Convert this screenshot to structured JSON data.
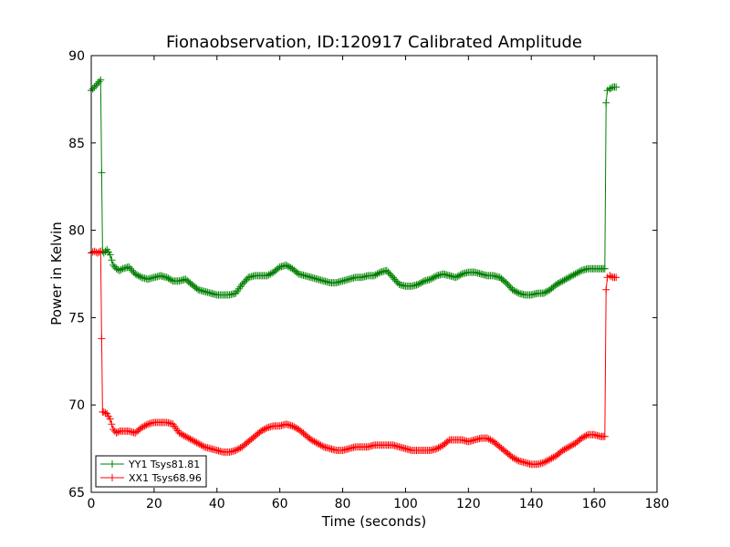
{
  "chart_data": {
    "type": "line",
    "title": "Fionaobservation, ID:120917 Calibrated Amplitude",
    "xlabel": "Time (seconds)",
    "ylabel": "Power in Kelvin",
    "xlim": [
      0,
      180
    ],
    "ylim": [
      65,
      90
    ],
    "xticks": [
      0,
      20,
      40,
      60,
      80,
      100,
      120,
      140,
      160,
      180
    ],
    "yticks": [
      65,
      70,
      75,
      80,
      85,
      90
    ],
    "grid": false,
    "legend_position": "lower-left",
    "marker": "plus",
    "series": [
      {
        "name": "YY1 Tsys81.81",
        "color": "#008000",
        "x": [
          0,
          1,
          2,
          3,
          3.3,
          3.6,
          4,
          5,
          6,
          7,
          8,
          9,
          10,
          12,
          14,
          16,
          18,
          20,
          22,
          24,
          26,
          28,
          30,
          32,
          34,
          36,
          38,
          40,
          42,
          44,
          46,
          48,
          50,
          52,
          54,
          56,
          58,
          60,
          62,
          64,
          66,
          68,
          70,
          72,
          74,
          76,
          78,
          80,
          82,
          84,
          86,
          88,
          90,
          92,
          94,
          96,
          98,
          100,
          102,
          104,
          106,
          108,
          110,
          112,
          114,
          116,
          118,
          120,
          122,
          124,
          126,
          128,
          130,
          132,
          134,
          136,
          138,
          140,
          142,
          144,
          146,
          148,
          150,
          152,
          154,
          156,
          158,
          160,
          162,
          163.4,
          163.8,
          164.2,
          165,
          166,
          167
        ],
        "y": [
          88.0,
          88.2,
          88.4,
          88.6,
          83.3,
          78.8,
          78.7,
          78.9,
          78.6,
          78.0,
          77.8,
          77.7,
          77.8,
          77.9,
          77.5,
          77.3,
          77.2,
          77.3,
          77.4,
          77.3,
          77.1,
          77.1,
          77.2,
          76.9,
          76.6,
          76.5,
          76.4,
          76.3,
          76.3,
          76.3,
          76.4,
          76.9,
          77.3,
          77.4,
          77.4,
          77.4,
          77.6,
          77.9,
          78.0,
          77.8,
          77.5,
          77.4,
          77.3,
          77.2,
          77.1,
          77.0,
          77.0,
          77.1,
          77.2,
          77.3,
          77.3,
          77.4,
          77.4,
          77.6,
          77.7,
          77.3,
          76.9,
          76.8,
          76.8,
          76.9,
          77.1,
          77.2,
          77.4,
          77.5,
          77.4,
          77.3,
          77.5,
          77.6,
          77.6,
          77.5,
          77.4,
          77.4,
          77.3,
          77.0,
          76.6,
          76.4,
          76.3,
          76.3,
          76.4,
          76.4,
          76.6,
          76.9,
          77.1,
          77.3,
          77.5,
          77.7,
          77.8,
          77.8,
          77.8,
          77.8,
          87.3,
          88.0,
          88.1,
          88.2,
          88.2
        ]
      },
      {
        "name": "XX1 Tsys68.96",
        "color": "#ff0000",
        "x": [
          0,
          1,
          2,
          3,
          3.3,
          3.6,
          4,
          5,
          6,
          7,
          8,
          9,
          10,
          12,
          14,
          16,
          18,
          20,
          22,
          24,
          26,
          28,
          30,
          32,
          34,
          36,
          38,
          40,
          42,
          44,
          46,
          48,
          50,
          52,
          54,
          56,
          58,
          60,
          62,
          64,
          66,
          68,
          70,
          72,
          74,
          76,
          78,
          80,
          82,
          84,
          86,
          88,
          90,
          92,
          94,
          96,
          98,
          100,
          102,
          104,
          106,
          108,
          110,
          112,
          114,
          116,
          118,
          120,
          122,
          124,
          126,
          128,
          130,
          132,
          134,
          136,
          138,
          140,
          142,
          144,
          146,
          148,
          150,
          152,
          154,
          156,
          158,
          160,
          162,
          163.4,
          163.8,
          164.2,
          165,
          166,
          167
        ],
        "y": [
          78.7,
          78.8,
          78.7,
          78.8,
          73.8,
          69.6,
          69.6,
          69.5,
          69.2,
          68.6,
          68.4,
          68.5,
          68.5,
          68.5,
          68.4,
          68.7,
          68.9,
          69.0,
          69.0,
          69.0,
          68.9,
          68.4,
          68.2,
          68.0,
          67.8,
          67.6,
          67.5,
          67.4,
          67.3,
          67.3,
          67.4,
          67.6,
          67.9,
          68.2,
          68.5,
          68.7,
          68.8,
          68.8,
          68.9,
          68.8,
          68.6,
          68.3,
          68.0,
          67.8,
          67.6,
          67.5,
          67.4,
          67.4,
          67.5,
          67.6,
          67.6,
          67.6,
          67.7,
          67.7,
          67.7,
          67.7,
          67.6,
          67.5,
          67.4,
          67.4,
          67.4,
          67.4,
          67.5,
          67.7,
          68.0,
          68.0,
          68.0,
          67.9,
          68.0,
          68.1,
          68.1,
          67.9,
          67.6,
          67.3,
          67.0,
          66.8,
          66.7,
          66.6,
          66.6,
          66.7,
          66.9,
          67.1,
          67.4,
          67.6,
          67.8,
          68.1,
          68.3,
          68.3,
          68.2,
          68.2,
          76.6,
          77.3,
          77.4,
          77.3,
          77.3
        ]
      }
    ]
  }
}
